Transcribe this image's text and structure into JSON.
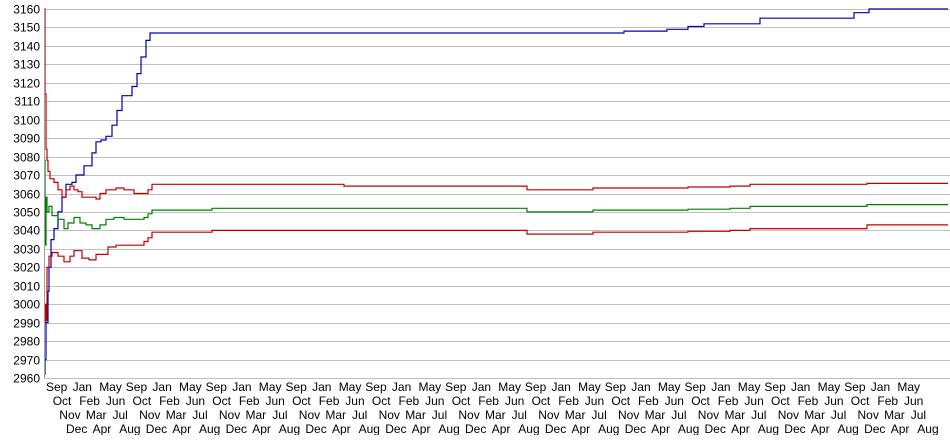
{
  "chart_data": {
    "type": "line",
    "title": "",
    "xlabel": "",
    "ylabel": "",
    "ylim": [
      2960,
      3160
    ],
    "y_ticks": [
      2960,
      2970,
      2980,
      2990,
      3000,
      3010,
      3020,
      3030,
      3040,
      3050,
      3060,
      3070,
      3080,
      3090,
      3100,
      3110,
      3120,
      3130,
      3140,
      3150,
      3160
    ],
    "grid": true,
    "legend": "none",
    "x_range": [
      0,
      904
    ],
    "x_tick_labels": [
      "Sep",
      "Oct",
      "Nov",
      "Dec",
      "Jan",
      "Feb",
      "Mar",
      "Apr",
      "May",
      "Jun",
      "Jul",
      "Aug",
      "Sep",
      "Oct",
      "Nov",
      "Dec",
      "Jan",
      "Feb",
      "Mar",
      "Apr",
      "May",
      "Jun",
      "Jul",
      "Aug",
      "Sep",
      "Oct",
      "Nov",
      "Dec",
      "Jan",
      "Feb",
      "Mar",
      "Apr",
      "May",
      "Jun",
      "Jul",
      "Aug",
      "Sep",
      "Oct",
      "Nov",
      "Dec",
      "Jan",
      "Feb",
      "Mar",
      "Apr",
      "May",
      "Jun",
      "Jul",
      "Aug",
      "Sep",
      "Oct",
      "Nov",
      "Dec",
      "Jan",
      "Feb",
      "Mar",
      "Apr",
      "May",
      "Jun",
      "Jul",
      "Aug",
      "Sep",
      "Oct",
      "Nov",
      "Dec",
      "Jan",
      "Feb",
      "Mar",
      "Apr",
      "May",
      "Jun",
      "Jul",
      "Aug",
      "Sep",
      "Oct",
      "Nov",
      "Dec",
      "Jan",
      "Feb",
      "Mar",
      "Apr",
      "May",
      "Jun",
      "Jul",
      "Aug",
      "Sep",
      "Oct",
      "Nov",
      "Dec",
      "Jan",
      "Feb",
      "Mar",
      "Apr",
      "May",
      "Jun",
      "Jul",
      "Aug",
      "Sep",
      "Oct",
      "Nov",
      "Dec",
      "Jan",
      "Feb",
      "Mar",
      "Apr",
      "May",
      "Jun",
      "Jul",
      "Aug",
      "Sep",
      "Oct",
      "Nov",
      "Dec",
      "Jan",
      "Feb",
      "Mar",
      "Apr",
      "May",
      "Jun",
      "Jul",
      "Aug",
      "Sep",
      "Oct",
      "Nov",
      "Dec",
      "Jan",
      "Feb",
      "Mar",
      "Apr",
      "May",
      "Jun",
      "Jul",
      "Aug"
    ],
    "series": [
      {
        "color": "#0000b0",
        "points": [
          [
            0,
            2962
          ],
          [
            1,
            2970
          ],
          [
            2,
            2990
          ],
          [
            4,
            3007
          ],
          [
            5,
            3020
          ],
          [
            7,
            3035
          ],
          [
            10,
            3041
          ],
          [
            14,
            3050
          ],
          [
            18,
            3058
          ],
          [
            22,
            3065
          ],
          [
            28,
            3066
          ],
          [
            32,
            3070
          ],
          [
            40,
            3075
          ],
          [
            48,
            3082
          ],
          [
            52,
            3088
          ],
          [
            57,
            3089
          ],
          [
            62,
            3091
          ],
          [
            68,
            3097
          ],
          [
            73,
            3105
          ],
          [
            78,
            3113
          ],
          [
            84,
            3113
          ],
          [
            88,
            3118
          ],
          [
            93,
            3125
          ],
          [
            97,
            3134
          ],
          [
            102,
            3143
          ],
          [
            106,
            3147
          ],
          [
            580,
            3148
          ],
          [
            623,
            3149
          ],
          [
            644,
            3150.5
          ],
          [
            660,
            3152
          ],
          [
            716,
            3155
          ],
          [
            810,
            3158
          ],
          [
            825,
            3160
          ],
          [
            904,
            3160
          ]
        ]
      },
      {
        "color": "#c00000",
        "points": [
          [
            0,
            3160
          ],
          [
            1,
            3114
          ],
          [
            2,
            3084
          ],
          [
            3,
            3078
          ],
          [
            4,
            3072
          ],
          [
            6,
            3068
          ],
          [
            10,
            3066
          ],
          [
            14,
            3062
          ],
          [
            18,
            3058
          ],
          [
            22,
            3062
          ],
          [
            26,
            3064
          ],
          [
            30,
            3062
          ],
          [
            34,
            3061
          ],
          [
            38,
            3058
          ],
          [
            45,
            3058
          ],
          [
            52,
            3057
          ],
          [
            56,
            3060
          ],
          [
            62,
            3062
          ],
          [
            72,
            3063
          ],
          [
            80,
            3062
          ],
          [
            90,
            3060
          ],
          [
            100,
            3060
          ],
          [
            104,
            3062
          ],
          [
            108,
            3065
          ],
          [
            300,
            3064
          ],
          [
            483,
            3062
          ],
          [
            549,
            3063
          ],
          [
            644,
            3063.5
          ],
          [
            686,
            3064
          ],
          [
            706,
            3065
          ],
          [
            823,
            3065.5
          ],
          [
            904,
            3065.5
          ]
        ]
      },
      {
        "color": "#008000",
        "points": [
          [
            0,
            3078
          ],
          [
            1,
            3032
          ],
          [
            2,
            3058
          ],
          [
            3,
            3050
          ],
          [
            5,
            3053
          ],
          [
            8,
            3048
          ],
          [
            14,
            3046
          ],
          [
            20,
            3041
          ],
          [
            24,
            3044
          ],
          [
            30,
            3047
          ],
          [
            36,
            3044
          ],
          [
            42,
            3043
          ],
          [
            48,
            3041
          ],
          [
            56,
            3043
          ],
          [
            62,
            3046
          ],
          [
            70,
            3047
          ],
          [
            80,
            3046
          ],
          [
            100,
            3047
          ],
          [
            104,
            3049
          ],
          [
            108,
            3051
          ],
          [
            168,
            3052
          ],
          [
            483,
            3050
          ],
          [
            549,
            3051
          ],
          [
            644,
            3051.5
          ],
          [
            686,
            3052
          ],
          [
            706,
            3053
          ],
          [
            823,
            3054
          ],
          [
            904,
            3054
          ]
        ]
      },
      {
        "color": "#c00000",
        "points": [
          [
            0,
            2990
          ],
          [
            1,
            3000
          ],
          [
            2,
            2991
          ],
          [
            3,
            3020
          ],
          [
            5,
            3026
          ],
          [
            8,
            3028
          ],
          [
            14,
            3026
          ],
          [
            20,
            3023
          ],
          [
            26,
            3026
          ],
          [
            30,
            3029
          ],
          [
            38,
            3025
          ],
          [
            45,
            3024
          ],
          [
            52,
            3027
          ],
          [
            58,
            3027
          ],
          [
            64,
            3031
          ],
          [
            72,
            3032
          ],
          [
            90,
            3032
          ],
          [
            100,
            3034
          ],
          [
            104,
            3036
          ],
          [
            108,
            3039
          ],
          [
            168,
            3040
          ],
          [
            483,
            3038
          ],
          [
            549,
            3039
          ],
          [
            644,
            3039.5
          ],
          [
            686,
            3040
          ],
          [
            706,
            3041
          ],
          [
            823,
            3043
          ],
          [
            904,
            3043
          ]
        ]
      }
    ]
  }
}
